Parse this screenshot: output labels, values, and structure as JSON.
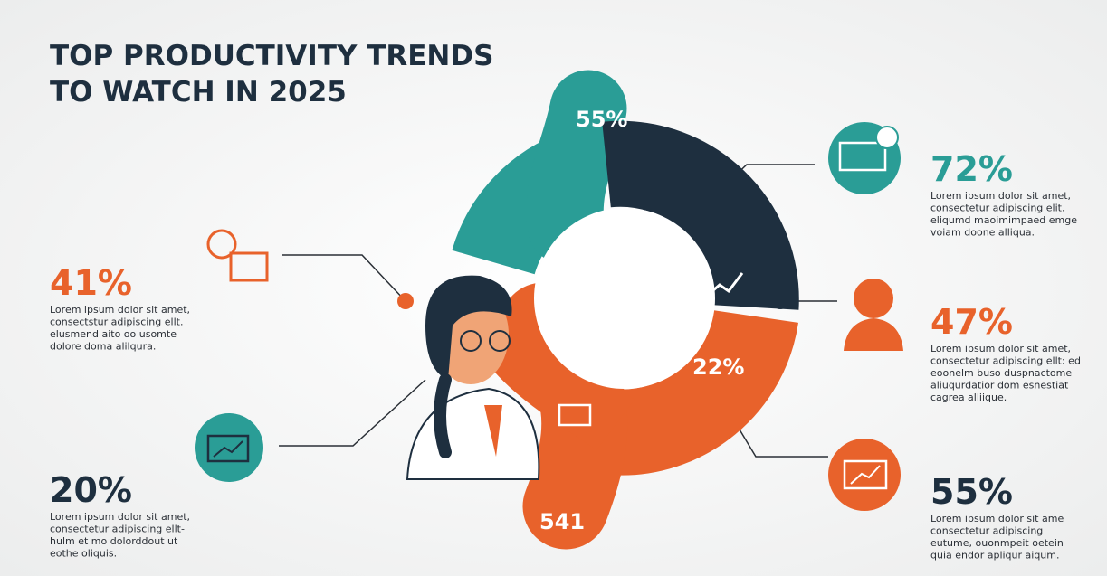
{
  "header": {
    "title": [
      "TOP PRODUCTIVITY TRENDS",
      "TO WATCH IN 2025"
    ]
  },
  "ring": {
    "labels": [
      "55%",
      "22%",
      "541"
    ]
  },
  "stats": [
    {
      "value": "41%",
      "text": [
        "Lorem ipsum dolor sit amet,",
        "consectstur adipiscing ellt.",
        "elusmend aito oo usomte",
        "dolore doma alilqura."
      ]
    },
    {
      "value": "20%",
      "text": [
        "Lorem ipsum dolor sit amet,",
        "consectetur adipiscing ellt-",
        "hulm et mo dolorddout ut",
        "eothe oliquis."
      ]
    },
    {
      "value": "72%",
      "text": [
        "Lorem ipsum dolor sit amet,",
        "consectetur adipiscing elit.",
        "eliqumd maoimimpaed emge",
        "voiam doone alliqua."
      ]
    },
    {
      "value": "47%",
      "text": [
        "Lorem ipsum dolor sit amet,",
        "consectetur adipiscing ellt: ed",
        "eoonelm buso duspnactome",
        "aliuqurdatior dom esnestiat",
        "cagrea alliique."
      ]
    },
    {
      "value": "55%",
      "text": [
        "Lorem ipsum dolor sit ame",
        "consectetur adipiscing",
        "eutume, ouonmpeit oetein",
        "quia endor apliqur aiqum."
      ]
    }
  ]
}
